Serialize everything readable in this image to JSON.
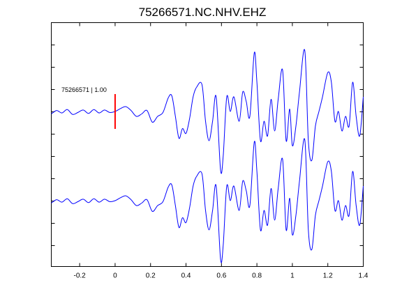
{
  "chart_data": {
    "type": "line",
    "title": "75266571.NC.NHV.EHZ",
    "xlabel": "",
    "ylabel": "",
    "xlim": [
      -0.36,
      1.4
    ],
    "xticks": [
      -0.2,
      0,
      0.2,
      0.4,
      0.6,
      0.8,
      1,
      1.2,
      1.4
    ],
    "xtick_labels": [
      "-0.2",
      "0",
      "0.2",
      "0.4",
      "0.6",
      "0.8",
      "1",
      "1.2",
      "1.4"
    ],
    "y_ticks_labeled": false,
    "grid": false,
    "line_color": "#0000ff",
    "marker_color": "#ff0000",
    "annotation": {
      "text": "75266571 | 1.00",
      "x": 0.0
    },
    "marker_x": 0.0,
    "series": [
      {
        "offset": 0,
        "x": [
          -0.36,
          -0.33,
          -0.3,
          -0.27,
          -0.24,
          -0.21,
          -0.18,
          -0.15,
          -0.12,
          -0.09,
          -0.06,
          -0.03,
          0.0,
          0.03,
          0.06,
          0.09,
          0.12,
          0.15,
          0.18,
          0.21,
          0.24,
          0.27,
          0.3,
          0.32,
          0.34,
          0.36,
          0.38,
          0.4,
          0.42,
          0.44,
          0.46,
          0.49,
          0.51,
          0.53,
          0.55,
          0.57,
          0.595,
          0.61,
          0.63,
          0.65,
          0.67,
          0.7,
          0.72,
          0.74,
          0.76,
          0.785,
          0.8,
          0.82,
          0.84,
          0.86,
          0.88,
          0.9,
          0.92,
          0.945,
          0.965,
          0.985,
          1.0,
          1.02,
          1.04,
          1.07,
          1.09,
          1.11,
          1.13,
          1.15,
          1.17,
          1.2,
          1.22,
          1.24,
          1.26,
          1.28,
          1.3,
          1.32,
          1.34,
          1.36,
          1.38,
          1.4
        ],
        "y": [
          -0.05,
          0.02,
          -0.03,
          0.04,
          -0.06,
          -0.02,
          0.03,
          -0.04,
          0.04,
          -0.03,
          0.03,
          -0.02,
          0.0,
          0.06,
          0.1,
          0.02,
          -0.1,
          -0.05,
          0.02,
          -0.22,
          -0.1,
          -0.02,
          0.28,
          0.32,
          -0.1,
          -0.55,
          -0.35,
          -0.45,
          -0.15,
          0.3,
          0.5,
          0.55,
          -0.2,
          -0.6,
          -0.2,
          0.3,
          -1.2,
          -0.9,
          0.3,
          0.0,
          0.3,
          -0.2,
          0.4,
          0.2,
          -0.1,
          1.2,
          0.6,
          -0.6,
          -0.2,
          -0.5,
          0.25,
          -0.4,
          0.25,
          0.85,
          -0.6,
          0.05,
          -0.7,
          -0.3,
          0.4,
          1.25,
          -0.6,
          -1.0,
          -0.3,
          0.0,
          0.3,
          0.8,
          0.6,
          -0.2,
          0.0,
          -0.4,
          -0.1,
          -0.3,
          0.6,
          -0.1,
          -0.5,
          0.3
        ]
      },
      {
        "offset": -1,
        "x": [
          -0.36,
          -0.33,
          -0.3,
          -0.27,
          -0.24,
          -0.21,
          -0.18,
          -0.15,
          -0.12,
          -0.09,
          -0.06,
          -0.03,
          0.0,
          0.03,
          0.06,
          0.09,
          0.12,
          0.15,
          0.18,
          0.21,
          0.24,
          0.27,
          0.3,
          0.32,
          0.34,
          0.36,
          0.38,
          0.4,
          0.42,
          0.44,
          0.46,
          0.49,
          0.51,
          0.53,
          0.55,
          0.57,
          0.595,
          0.61,
          0.63,
          0.65,
          0.67,
          0.7,
          0.72,
          0.74,
          0.76,
          0.785,
          0.8,
          0.82,
          0.84,
          0.86,
          0.88,
          0.9,
          0.92,
          0.945,
          0.965,
          0.985,
          1.0,
          1.02,
          1.04,
          1.07,
          1.09,
          1.11,
          1.13,
          1.15,
          1.17,
          1.2,
          1.22,
          1.24,
          1.26,
          1.28,
          1.3,
          1.32,
          1.34,
          1.36,
          1.38,
          1.4
        ],
        "y": [
          -0.05,
          0.02,
          -0.03,
          0.04,
          -0.06,
          -0.02,
          0.03,
          -0.04,
          0.04,
          -0.03,
          0.03,
          -0.02,
          0.0,
          0.06,
          0.1,
          0.02,
          -0.1,
          -0.05,
          0.02,
          -0.22,
          -0.1,
          -0.02,
          0.28,
          0.32,
          -0.1,
          -0.55,
          -0.35,
          -0.45,
          -0.15,
          0.3,
          0.5,
          0.55,
          -0.2,
          -0.6,
          -0.2,
          0.3,
          -1.2,
          -0.9,
          0.3,
          0.0,
          0.3,
          -0.2,
          0.4,
          0.2,
          -0.1,
          1.2,
          0.6,
          -0.6,
          -0.2,
          -0.5,
          0.25,
          -0.4,
          0.25,
          0.85,
          -0.6,
          0.05,
          -0.7,
          -0.3,
          0.4,
          1.25,
          -0.6,
          -1.0,
          -0.3,
          0.0,
          0.3,
          0.8,
          0.6,
          -0.2,
          0.0,
          -0.4,
          -0.1,
          -0.3,
          0.6,
          -0.1,
          -0.5,
          0.3
        ]
      }
    ]
  }
}
